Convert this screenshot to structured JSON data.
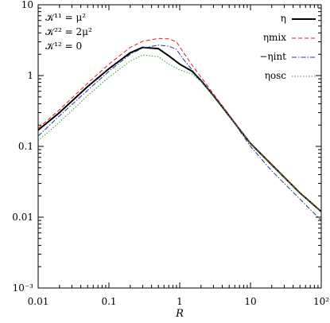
{
  "chart_data": {
    "type": "line",
    "xlabel": "R",
    "xscale": "log",
    "yscale": "log",
    "xlim": [
      0.01,
      100
    ],
    "ylim": [
      0.001,
      10
    ],
    "grid": false,
    "legend_position": "top-right",
    "x_tick_labels": [
      "0.01",
      "0.1",
      "1",
      "10",
      "10²"
    ],
    "y_tick_labels": [
      "10⁻³",
      "0.01",
      "0.1",
      "1",
      "10"
    ],
    "annotations": [
      "𝒦¹¹ = μ²",
      "𝒦²² = 2μ²",
      "𝒦¹² = 0"
    ],
    "series": [
      {
        "name": "η",
        "color": "#000000",
        "style": "solid",
        "x": [
          0.01,
          0.02,
          0.05,
          0.1,
          0.2,
          0.3,
          0.5,
          0.7,
          1.0,
          1.5,
          2,
          3,
          5,
          10,
          20,
          50,
          100
        ],
        "y": [
          0.17,
          0.3,
          0.7,
          1.25,
          2.1,
          2.5,
          2.4,
          1.9,
          1.45,
          1.15,
          0.85,
          0.52,
          0.27,
          0.11,
          0.055,
          0.022,
          0.012
        ]
      },
      {
        "name": "ηmix",
        "color": "#e41a1c",
        "style": "dashed",
        "x": [
          0.01,
          0.02,
          0.05,
          0.1,
          0.2,
          0.3,
          0.5,
          0.7,
          0.9,
          1.1,
          1.5,
          2,
          3,
          5,
          10,
          20,
          50,
          100
        ],
        "y": [
          0.18,
          0.33,
          0.78,
          1.45,
          2.5,
          3.05,
          3.35,
          3.3,
          3.0,
          2.2,
          1.4,
          0.95,
          0.55,
          0.28,
          0.11,
          0.055,
          0.022,
          0.012
        ]
      },
      {
        "name": "−ηint",
        "color": "#1f3a93",
        "style": "dashdot",
        "x": [
          0.01,
          0.02,
          0.05,
          0.1,
          0.2,
          0.3,
          0.5,
          0.7,
          0.9,
          1.1,
          1.5,
          2,
          3,
          5,
          10,
          20,
          50,
          100
        ],
        "y": [
          0.14,
          0.27,
          0.62,
          1.15,
          2.0,
          2.45,
          2.7,
          2.6,
          2.35,
          1.75,
          1.2,
          0.85,
          0.52,
          0.27,
          0.1,
          0.045,
          0.018,
          0.009
        ]
      },
      {
        "name": "ηosc",
        "color": "#2ca02c",
        "style": "dotted",
        "x": [
          0.01,
          0.02,
          0.05,
          0.1,
          0.2,
          0.3,
          0.5,
          0.7,
          1.0,
          1.5,
          2,
          3,
          5,
          10,
          20,
          50,
          100
        ],
        "y": [
          0.12,
          0.22,
          0.52,
          0.95,
          1.6,
          1.95,
          1.85,
          1.45,
          1.2,
          1.05,
          0.82,
          0.52,
          0.27,
          0.11,
          0.055,
          0.022,
          0.012
        ]
      }
    ]
  }
}
